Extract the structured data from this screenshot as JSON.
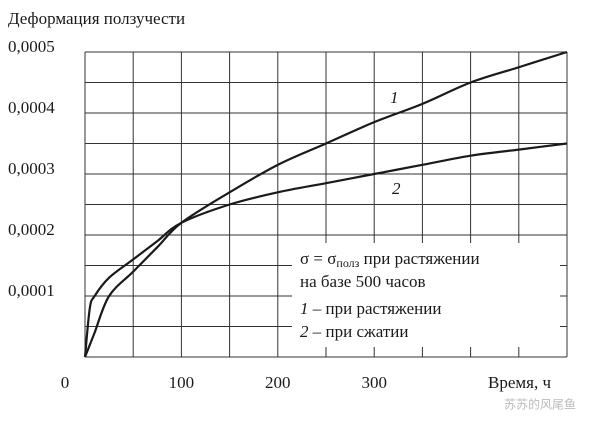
{
  "chart_data": {
    "type": "line",
    "y_label": "Деформация ползучести",
    "x_label": "Время, ч",
    "x": [
      0,
      5,
      10,
      25,
      50,
      75,
      100,
      150,
      200,
      250,
      300,
      350,
      400,
      450,
      500
    ],
    "series": [
      {
        "name": "1",
        "legend_text": "– при растяжении",
        "color": "#1a1a1a",
        "values": [
          0,
          2e-05,
          4e-05,
          0.0001,
          0.00014,
          0.00018,
          0.00022,
          0.00027,
          0.000315,
          0.00035,
          0.000385,
          0.000415,
          0.00045,
          0.000475,
          0.0005
        ]
      },
      {
        "name": "2",
        "legend_text": "– при сжатии",
        "color": "#1a1a1a",
        "values": [
          0,
          8e-05,
          0.0001,
          0.00013,
          0.00016,
          0.00019,
          0.00022,
          0.00025,
          0.00027,
          0.000285,
          0.0003,
          0.000315,
          0.00033,
          0.00034,
          0.00035
        ]
      }
    ],
    "xlim": [
      0,
      500
    ],
    "ylim": [
      0,
      0.0005
    ],
    "xticks": [
      0,
      100,
      200,
      300
    ],
    "yticks": [
      {
        "value": 0.0001,
        "label": "0,0001"
      },
      {
        "value": 0.0002,
        "label": "0,0002"
      },
      {
        "value": 0.0003,
        "label": "0,0003"
      },
      {
        "value": 0.0004,
        "label": "0,0004"
      },
      {
        "value": 0.0005,
        "label": "0,0005"
      }
    ],
    "x_grid": [
      0,
      50,
      100,
      150,
      200,
      250,
      300,
      350,
      400,
      450,
      500
    ],
    "y_grid": [
      0,
      5e-05,
      0.0001,
      0.00015,
      0.0002,
      0.00025,
      0.0003,
      0.00035,
      0.0004,
      0.00045,
      0.0005
    ],
    "note": {
      "sigma": "σ = σ",
      "subscript": "полз",
      "rest": " при растяжении",
      "line2": "на базе 500 часов"
    },
    "watermark": "苏苏的风尾鱼"
  }
}
